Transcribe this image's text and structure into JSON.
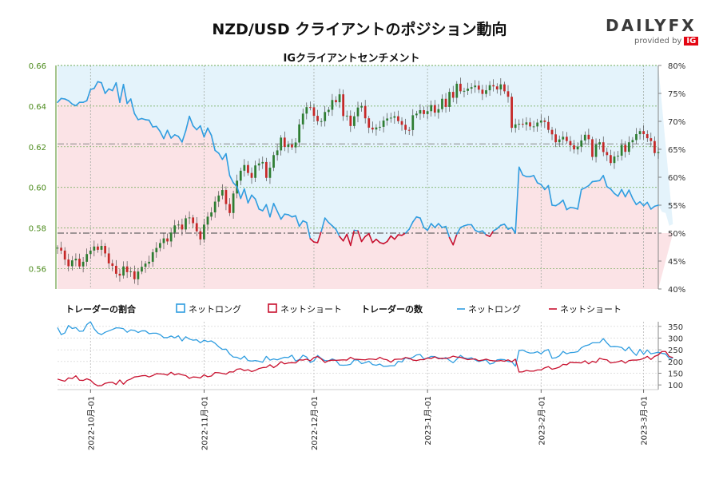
{
  "title": "NZD/USD クライアントのポジション動向",
  "logo": {
    "word": "DAILY",
    "fx": "FX",
    "provided_by": "provided by",
    "ig": "IG"
  },
  "colors": {
    "long": "#2f9de0",
    "short": "#c8102e",
    "long_bg": "#e4f3fb",
    "short_bg": "#fbe3e6",
    "candle_up": "#2e7d32",
    "candle_down": "#c62828",
    "price_axis": "#4a8a1a"
  },
  "chart_data": [
    {
      "type": "candlestick",
      "title": "IGクライアントセンチメント",
      "ylim": [
        0.55,
        0.66
      ],
      "y_ticks": [
        "0.56",
        "0.58",
        "0.60",
        "0.62",
        "0.64",
        "0.66"
      ],
      "y_tick_values": [
        0.56,
        0.58,
        0.6,
        0.62,
        0.64,
        0.66
      ],
      "y2_lim": [
        40,
        80
      ],
      "y2_ticks": [
        "40%",
        "45%",
        "50%",
        "55%",
        "60%",
        "65%",
        "70%",
        "75%",
        "80%"
      ],
      "y2_tick_values": [
        40,
        45,
        50,
        55,
        60,
        65,
        70,
        75,
        80
      ],
      "reference_lines": {
        "price": 0.6214,
        "percent_50": 50
      },
      "x_labels": [
        "2022-10月-01",
        "2022-11月-01",
        "2022-12月-01",
        "2023-1月-01",
        "2023-2月-01",
        "2023-3月-01"
      ],
      "x_label_positions": [
        9,
        40,
        70,
        101,
        132,
        160
      ],
      "price_close": [
        0.5703,
        0.5689,
        0.5645,
        0.5612,
        0.5641,
        0.5649,
        0.5611,
        0.5634,
        0.5672,
        0.5689,
        0.5709,
        0.5693,
        0.5712,
        0.5675,
        0.5626,
        0.5614,
        0.5575,
        0.5566,
        0.5611,
        0.5583,
        0.5587,
        0.5548,
        0.5586,
        0.5609,
        0.5625,
        0.5634,
        0.5681,
        0.5702,
        0.5726,
        0.5749,
        0.5734,
        0.5778,
        0.5813,
        0.5817,
        0.5793,
        0.5848,
        0.5852,
        0.5824,
        0.5784,
        0.5744,
        0.5817,
        0.5856,
        0.5877,
        0.593,
        0.596,
        0.5987,
        0.5918,
        0.5874,
        0.597,
        0.6033,
        0.6082,
        0.611,
        0.6071,
        0.6047,
        0.6108,
        0.6118,
        0.6125,
        0.6047,
        0.6097,
        0.6159,
        0.6182,
        0.6245,
        0.6199,
        0.6211,
        0.6197,
        0.6221,
        0.631,
        0.6363,
        0.6395,
        0.6394,
        0.6352,
        0.6326,
        0.6326,
        0.6371,
        0.6382,
        0.643,
        0.6419,
        0.6458,
        0.6351,
        0.6353,
        0.6302,
        0.635,
        0.6393,
        0.6401,
        0.634,
        0.6294,
        0.6285,
        0.6295,
        0.6298,
        0.6329,
        0.6339,
        0.6343,
        0.635,
        0.6326,
        0.6308,
        0.6283,
        0.6282,
        0.6355,
        0.6363,
        0.638,
        0.6361,
        0.6375,
        0.6405,
        0.6368,
        0.6385,
        0.6436,
        0.6396,
        0.647,
        0.6441,
        0.651,
        0.6473,
        0.6475,
        0.6486,
        0.6493,
        0.6501,
        0.6481,
        0.646,
        0.6478,
        0.6503,
        0.6497,
        0.6482,
        0.6507,
        0.6473,
        0.6446,
        0.6293,
        0.631,
        0.6313,
        0.6309,
        0.632,
        0.63,
        0.63,
        0.6319,
        0.6329,
        0.6322,
        0.6283,
        0.6261,
        0.6222,
        0.6236,
        0.6249,
        0.6228,
        0.6207,
        0.6187,
        0.6201,
        0.6231,
        0.6259,
        0.6237,
        0.615,
        0.6211,
        0.6222,
        0.6174,
        0.6159,
        0.612,
        0.6152,
        0.6156,
        0.6209,
        0.6175,
        0.6222,
        0.6233,
        0.6262,
        0.6277,
        0.6262,
        0.6242,
        0.6228,
        0.6169,
        0.6174
      ]
    },
    {
      "type": "line",
      "name": "net_long_percent",
      "y2_values": [
        73.4,
        74.1,
        74.0,
        73.7,
        73.1,
        72.8,
        73.4,
        73.4,
        73.7,
        75.7,
        75.9,
        77.1,
        76.9,
        75.0,
        75.8,
        75.5,
        76.9,
        73.4,
        76.6,
        73.2,
        74.0,
        71.4,
        70.3,
        70.5,
        70.3,
        70.2,
        69.0,
        69.1,
        68.2,
        66.9,
        68.4,
        67.0,
        67.6,
        67.3,
        66.3,
        68.3,
        70.9,
        69.2,
        68.5,
        69.2,
        67.2,
        68.8,
        67.5,
        64.8,
        64.3,
        63.2,
        64.2,
        60.3,
        59.0,
        58.3,
        56.2,
        57.9,
        55.4,
        56.8,
        56.1,
        54.3,
        54.0,
        55.1,
        52.9,
        55.3,
        53.9,
        52.5,
        53.4,
        53.3,
        52.9,
        53.1,
        51.2,
        52.2,
        51.9,
        49.0,
        48.4,
        48.3,
        50.3,
        52.7,
        51.9,
        51.3,
        50.7,
        49.4,
        48.6,
        49.8,
        47.8,
        50.5,
        50.4,
        48.5,
        49.4,
        49.9,
        48.3,
        48.9,
        48.3,
        48.1,
        48.5,
        49.5,
        48.9,
        49.7,
        49.6,
        50.0,
        50.7,
        52.0,
        52.9,
        52.7,
        51.0,
        50.5,
        51.7,
        51.0,
        51.7,
        51.0,
        51.2,
        49.2,
        47.9,
        49.8,
        51.0,
        51.3,
        51.5,
        51.5,
        50.5,
        50.2,
        50.4,
        49.7,
        49.4,
        50.4,
        50.8,
        51.4,
        51.6,
        50.7,
        51.0,
        50.0,
        61.8,
        60.4,
        60.1,
        60.1,
        60.3,
        59.0,
        58.7,
        57.8,
        58.5,
        55.0,
        54.9,
        55.3,
        55.9,
        54.2,
        54.6,
        54.5,
        54.3,
        57.8,
        58.1,
        58.5,
        59.2,
        59.3,
        59.4,
        60.3,
        58.3,
        57.9,
        57.1,
        56.6,
        57.8,
        56.5,
        57.7,
        56.2,
        55.1,
        55.6,
        54.9,
        55.5,
        54.3,
        54.8,
        55.0,
        53.8,
        53.6,
        51.3,
        51.6
      ]
    },
    {
      "type": "line",
      "name": "trader_count",
      "y_ticks": [
        "100",
        "150",
        "200",
        "250",
        "300",
        "350"
      ],
      "y_tick_values": [
        100,
        150,
        200,
        250,
        300,
        350
      ],
      "ylim": [
        80,
        370
      ],
      "legend": {
        "percent_title": "トレーダーの割合",
        "count_title": "トレーダーの数",
        "long_label": "ネットロング",
        "short_label": "ネットショート"
      },
      "series": [
        {
          "name": "long",
          "values": [
            345,
            315,
            322,
            354,
            341,
            345,
            329,
            330,
            358,
            370,
            340,
            322,
            315,
            325,
            331,
            337,
            344,
            343,
            340,
            325,
            335,
            333,
            324,
            331,
            331,
            319,
            321,
            321,
            315,
            302,
            302,
            309,
            301,
            310,
            288,
            306,
            296,
            291,
            293,
            280,
            291,
            285,
            288,
            278,
            263,
            252,
            253,
            232,
            219,
            218,
            210,
            223,
            204,
            202,
            204,
            201,
            197,
            222,
            206,
            211,
            207,
            213,
            218,
            217,
            227,
            202,
            208,
            227,
            219,
            196,
            203,
            226,
            213,
            204,
            203,
            211,
            205,
            185,
            184,
            185,
            188,
            207,
            206,
            191,
            195,
            201,
            187,
            184,
            189,
            179,
            180,
            182,
            182,
            201,
            198,
            217,
            211,
            218,
            228,
            230,
            211,
            214,
            222,
            221,
            215,
            211,
            217,
            205,
            195,
            210,
            226,
            215,
            212,
            216,
            207,
            200,
            204,
            207,
            189,
            193,
            207,
            209,
            208,
            200,
            199,
            180,
            247,
            249,
            241,
            236,
            237,
            242,
            233,
            246,
            251,
            214,
            216,
            224,
            243,
            233,
            238,
            239,
            242,
            259,
            267,
            271,
            280,
            280,
            281,
            298,
            279,
            263,
            264,
            263,
            260,
            246,
            262,
            241,
            226,
            252,
            231,
            249,
            233,
            236,
            240,
            235,
            232,
            213,
            214
          ]
        },
        {
          "name": "short",
          "values": [
            125,
            120,
            116,
            130,
            127,
            139,
            120,
            119,
            126,
            120,
            105,
            96,
            97,
            107,
            110,
            111,
            102,
            121,
            103,
            119,
            125,
            134,
            136,
            139,
            140,
            134,
            140,
            148,
            147,
            146,
            142,
            154,
            143,
            148,
            143,
            140,
            128,
            134,
            133,
            130,
            143,
            135,
            138,
            153,
            152,
            149,
            146,
            156,
            155,
            167,
            169,
            161,
            165,
            157,
            162,
            170,
            174,
            175,
            186,
            174,
            184,
            199,
            190,
            194,
            195,
            194,
            207,
            206,
            210,
            203,
            217,
            221,
            211,
            196,
            203,
            206,
            205,
            206,
            207,
            206,
            218,
            210,
            209,
            208,
            207,
            211,
            210,
            208,
            218,
            210,
            207,
            197,
            209,
            210,
            210,
            217,
            214,
            206,
            204,
            208,
            208,
            215,
            213,
            220,
            212,
            214,
            213,
            216,
            223,
            219,
            218,
            213,
            208,
            210,
            211,
            203,
            206,
            210,
            205,
            203,
            202,
            204,
            201,
            207,
            199,
            210,
            155,
            156,
            162,
            159,
            159,
            164,
            164,
            173,
            178,
            167,
            171,
            176,
            188,
            186,
            197,
            195,
            195,
            194,
            203,
            190,
            201,
            196,
            214,
            209,
            207,
            194,
            196,
            199,
            204,
            193,
            204,
            206,
            206,
            208,
            213,
            222,
            209,
            222,
            228,
            243,
            243,
            221,
            217
          ]
        }
      ]
    }
  ]
}
